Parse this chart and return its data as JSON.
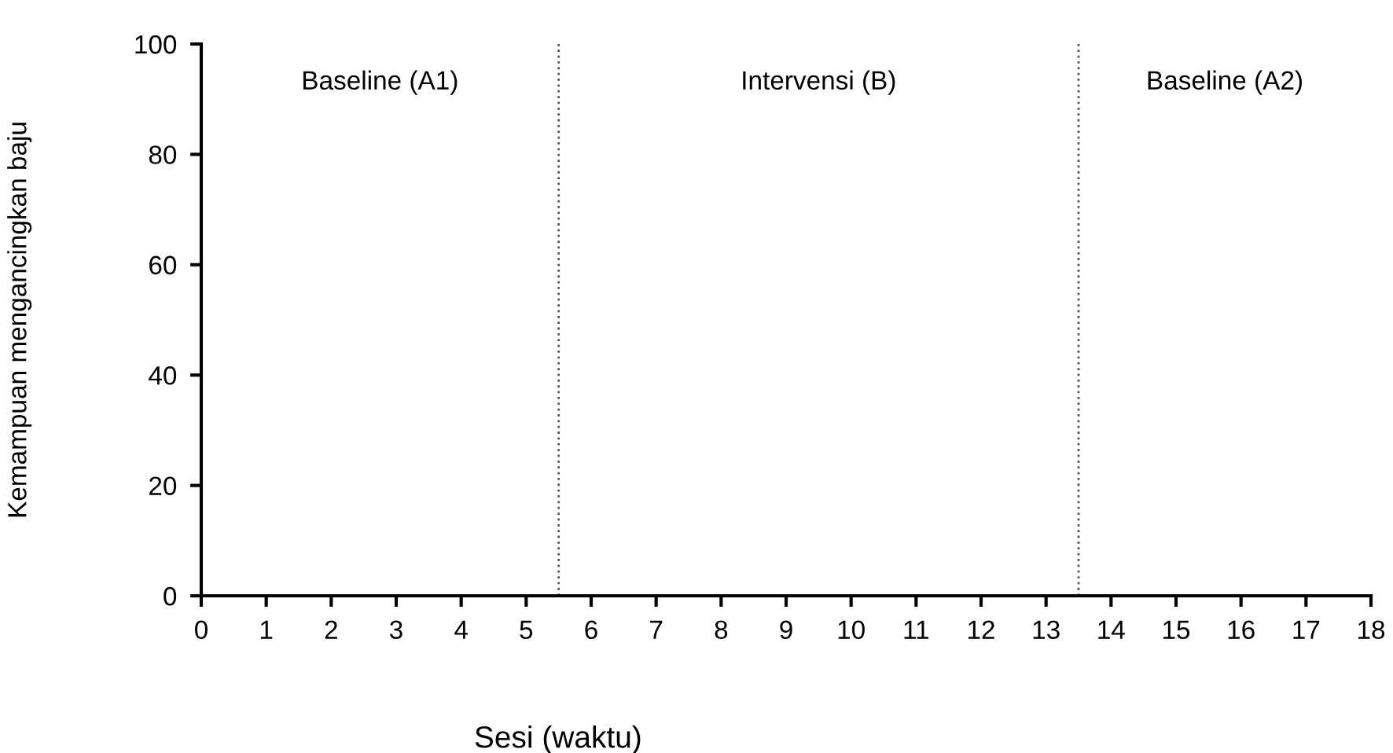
{
  "chart_data": {
    "type": "line",
    "xlabel": "Sesi (waktu)",
    "ylabel": "Kemampuan mengancingkan baju",
    "annotations": [
      "Baseline (A1)",
      "Intervensi (B)",
      "Baseline (A2)"
    ],
    "xlim": [
      0,
      18
    ],
    "xticks": [
      0,
      1,
      2,
      3,
      4,
      5,
      6,
      7,
      8,
      9,
      10,
      11,
      12,
      13,
      14,
      15,
      16,
      17,
      18
    ],
    "ylim": [
      0,
      100
    ],
    "yticks": [
      0,
      20,
      40,
      60,
      80,
      100
    ],
    "ref_lines": [
      {
        "axis": "x",
        "value": 5.5,
        "color": "#555555",
        "line_style": "dotted"
      },
      {
        "axis": "x",
        "value": 13.5,
        "color": "#555555",
        "line_style": "dotted"
      }
    ],
    "grid": false,
    "legend": false
  }
}
